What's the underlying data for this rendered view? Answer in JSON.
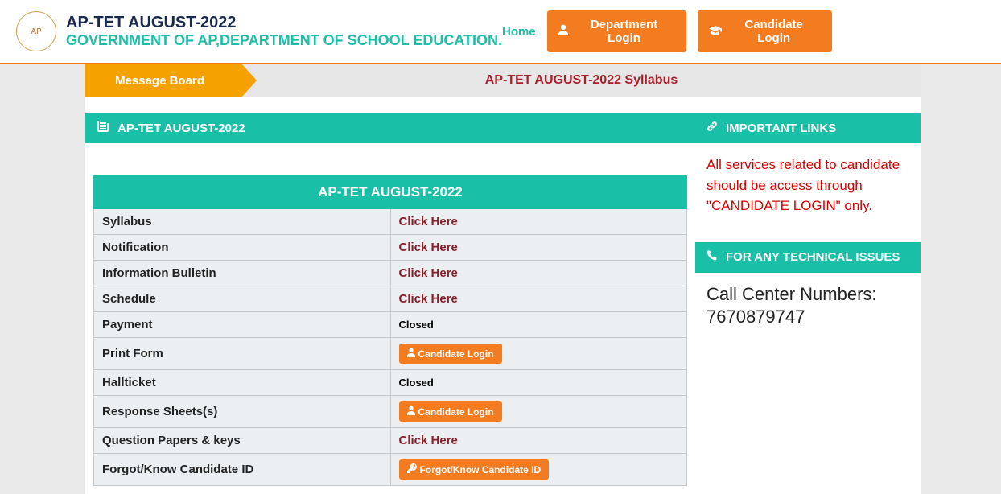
{
  "header": {
    "title_line1": "AP-TET AUGUST-2022",
    "title_line2": "GOVERNMENT OF AP,DEPARTMENT OF SCHOOL EDUCATION.",
    "home_label": "Home",
    "dept_login_label": "Department Login",
    "candidate_login_label": "Candidate Login",
    "logo_alt": "AP"
  },
  "message_board": {
    "tab_label": "Message Board",
    "ticker_text": "AP-TET AUGUST-2022 Syllabus"
  },
  "main_panel": {
    "header_text": "AP-TET AUGUST-2022",
    "table_title": "AP-TET AUGUST-2022",
    "rows": [
      {
        "label": "Syllabus",
        "type": "link",
        "action_text": "Click Here"
      },
      {
        "label": "Notification",
        "type": "link",
        "action_text": "Click Here"
      },
      {
        "label": "Information Bulletin",
        "type": "link",
        "action_text": "Click Here"
      },
      {
        "label": "Schedule",
        "type": "link",
        "action_text": "Click Here"
      },
      {
        "label": "Payment",
        "type": "closed",
        "action_text": "Closed"
      },
      {
        "label": "Print Form",
        "type": "button",
        "action_text": "Candidate Login",
        "icon": "user"
      },
      {
        "label": "Hallticket",
        "type": "closed",
        "action_text": "Closed"
      },
      {
        "label": "Response Sheets(s)",
        "type": "button",
        "action_text": "Candidate Login",
        "icon": "user"
      },
      {
        "label": "Question Papers & keys",
        "type": "link",
        "action_text": "Click Here"
      },
      {
        "label": "Forgot/Know Candidate ID",
        "type": "button",
        "action_text": "Forgot/Know Candidate ID",
        "icon": "key"
      }
    ]
  },
  "sidebar": {
    "important_links": {
      "header": "IMPORTANT LINKS",
      "notice": "All services related to candidate should be access through \"CANDIDATE LOGIN\" only."
    },
    "tech_issues": {
      "header": "FOR ANY TECHNICAL ISSUES",
      "call_label": "Call Center Numbers:",
      "call_number": "7670879747"
    }
  },
  "colors": {
    "teal": "#19bfa7",
    "orange": "#f47c20",
    "amber": "#f5a100",
    "darkred": "#8a1c27",
    "red": "#d70000",
    "navy": "#1a2a4d",
    "row_bg": "#eceff1",
    "border": "#c7c7c7"
  }
}
